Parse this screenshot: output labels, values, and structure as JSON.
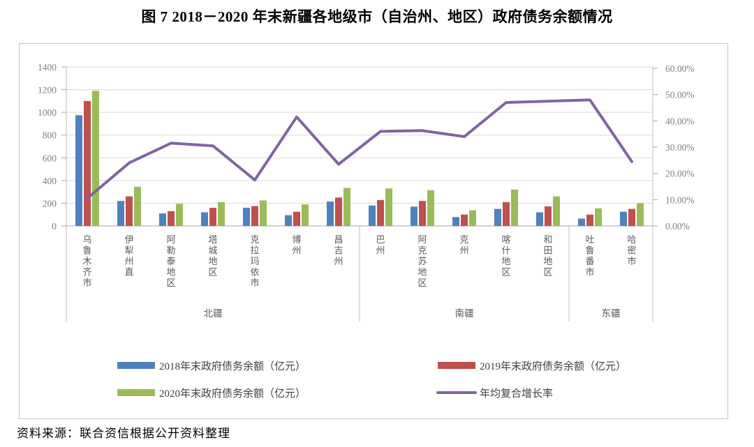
{
  "title": "图 7  2018－2020 年末新疆各地级市（自治州、地区）政府债务余额情况",
  "source": "资料来源：联合资信根据公开资料整理",
  "chart_data": {
    "type": "bar",
    "subtype": "combo-bar-line-dual-axis",
    "categories": [
      "乌鲁木齐市",
      "伊犁州直",
      "阿勒泰地区",
      "塔城地区",
      "克拉玛依市",
      "博州",
      "昌吉州",
      "巴州",
      "阿克苏地区",
      "克州",
      "喀什地区",
      "和田地区",
      "吐鲁番市",
      "哈密市"
    ],
    "groups": [
      {
        "label": "北疆",
        "count": 7
      },
      {
        "label": "南疆",
        "count": 5
      },
      {
        "label": "东疆",
        "count": 2
      }
    ],
    "series": [
      {
        "name": "2018年末政府债务余额（亿元）",
        "type": "bar",
        "axis": "left",
        "color": "#4f81bd",
        "values": [
          975,
          220,
          110,
          120,
          160,
          95,
          215,
          180,
          170,
          78,
          150,
          120,
          65,
          125
        ]
      },
      {
        "name": "2019年末政府债务余额（亿元）",
        "type": "bar",
        "axis": "left",
        "color": "#c0504d",
        "values": [
          1100,
          260,
          130,
          160,
          175,
          125,
          250,
          228,
          220,
          100,
          210,
          172,
          100,
          150
        ]
      },
      {
        "name": "2020年末政府债务余额（亿元）",
        "type": "bar",
        "axis": "left",
        "color": "#9bbb59",
        "values": [
          1190,
          345,
          195,
          210,
          225,
          190,
          335,
          330,
          315,
          138,
          320,
          260,
          155,
          200
        ]
      },
      {
        "name": "年均复合增长率",
        "type": "line",
        "axis": "right",
        "color": "#8064a2",
        "unit": "%",
        "values": [
          10.5,
          24,
          31.5,
          30.5,
          17.5,
          41.5,
          23.5,
          36,
          36.3,
          34,
          47,
          47.5,
          48,
          24.5
        ]
      }
    ],
    "left_axis": {
      "min": 0,
      "max": 1400,
      "step": 200,
      "labels": [
        "1400",
        "1200",
        "1000",
        "800",
        "600",
        "400",
        "200",
        "0"
      ]
    },
    "right_axis": {
      "min": 0,
      "max": 60,
      "step": 10,
      "labels": [
        "60.00%",
        "50.00%",
        "40.00%",
        "30.00%",
        "20.00%",
        "10.00%",
        "0.00%"
      ]
    },
    "grid": true,
    "legend_position": "bottom"
  }
}
